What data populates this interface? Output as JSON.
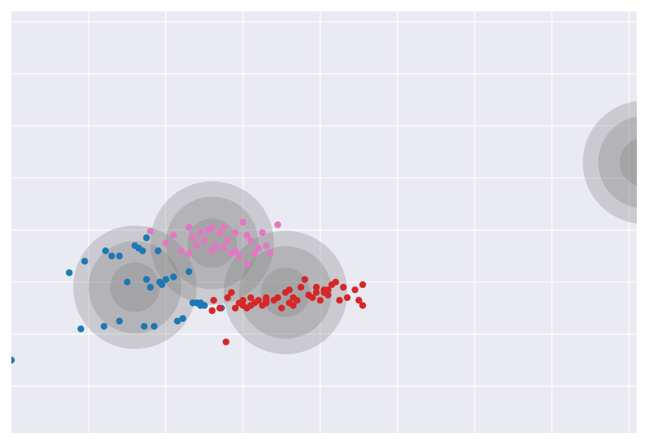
{
  "chart_data": {
    "type": "scatter",
    "title": "",
    "xlabel": "",
    "ylabel": "",
    "xlim": [
      0,
      8.1
    ],
    "ylim": [
      0,
      8.1
    ],
    "grid": true,
    "background": "#eaeaf2",
    "grid_color": "#ffffff",
    "x_gridlines": [
      1,
      2,
      3,
      4,
      5,
      6,
      7,
      8
    ],
    "y_gridlines": [
      0.9,
      1.9,
      2.9,
      3.9,
      4.9,
      5.9,
      6.9,
      7.9
    ],
    "clusters": [
      {
        "color": "#1f77b4",
        "center": [
          1.6,
          2.8
        ],
        "radii": [
          0.8,
          0.6,
          0.32
        ],
        "points": [
          [
            0.0,
            1.4
          ],
          [
            0.75,
            3.08
          ],
          [
            0.9,
            2.0
          ],
          [
            0.95,
            3.3
          ],
          [
            1.2,
            2.05
          ],
          [
            1.22,
            3.5
          ],
          [
            1.3,
            3.4
          ],
          [
            1.4,
            2.15
          ],
          [
            1.4,
            3.4
          ],
          [
            1.5,
            2.9
          ],
          [
            1.6,
            3.6
          ],
          [
            1.65,
            3.55
          ],
          [
            1.7,
            3.5
          ],
          [
            1.75,
            3.75
          ],
          [
            1.72,
            2.05
          ],
          [
            1.75,
            2.95
          ],
          [
            1.8,
            2.8
          ],
          [
            1.9,
            3.5
          ],
          [
            1.92,
            2.9
          ],
          [
            2.0,
            2.95
          ],
          [
            2.1,
            3.0
          ],
          [
            2.15,
            2.15
          ],
          [
            2.22,
            2.2
          ],
          [
            2.3,
            3.1
          ],
          [
            2.35,
            2.5
          ],
          [
            2.4,
            2.5
          ],
          [
            2.45,
            2.45
          ],
          [
            2.45,
            2.5
          ],
          [
            2.5,
            2.45
          ],
          [
            2.72,
            2.4
          ],
          [
            1.85,
            2.05
          ],
          [
            1.95,
            2.85
          ]
        ]
      },
      {
        "color": "#e377c2",
        "center": [
          2.6,
          3.65
        ],
        "radii": [
          0.8,
          0.6,
          0.32
        ],
        "points": [
          [
            1.8,
            3.88
          ],
          [
            2.0,
            3.65
          ],
          [
            2.1,
            3.8
          ],
          [
            2.2,
            3.5
          ],
          [
            2.3,
            3.45
          ],
          [
            2.3,
            3.95
          ],
          [
            2.35,
            3.75
          ],
          [
            2.45,
            3.85
          ],
          [
            2.5,
            3.7
          ],
          [
            2.55,
            3.9
          ],
          [
            2.6,
            3.95
          ],
          [
            2.6,
            3.5
          ],
          [
            2.65,
            3.6
          ],
          [
            2.7,
            3.85
          ],
          [
            2.75,
            3.95
          ],
          [
            2.8,
            3.7
          ],
          [
            2.85,
            3.45
          ],
          [
            2.9,
            3.5
          ],
          [
            2.9,
            3.85
          ],
          [
            2.95,
            3.4
          ],
          [
            3.0,
            4.05
          ],
          [
            3.05,
            3.8
          ],
          [
            3.1,
            3.7
          ],
          [
            3.15,
            3.45
          ],
          [
            3.2,
            3.55
          ],
          [
            3.25,
            3.85
          ],
          [
            3.3,
            3.6
          ],
          [
            3.35,
            3.45
          ],
          [
            3.05,
            3.25
          ],
          [
            3.45,
            4.0
          ],
          [
            2.4,
            3.6
          ],
          [
            2.75,
            3.55
          ]
        ]
      },
      {
        "color": "#d62728",
        "center": [
          3.55,
          2.7
        ],
        "radii": [
          0.8,
          0.6,
          0.32
        ],
        "points": [
          [
            2.6,
            2.35
          ],
          [
            2.62,
            2.55
          ],
          [
            2.7,
            2.4
          ],
          [
            2.8,
            2.6
          ],
          [
            2.85,
            2.7
          ],
          [
            2.9,
            2.4
          ],
          [
            2.95,
            2.5
          ],
          [
            3.0,
            2.45
          ],
          [
            3.0,
            2.55
          ],
          [
            3.05,
            2.4
          ],
          [
            3.1,
            2.45
          ],
          [
            3.1,
            2.6
          ],
          [
            3.15,
            2.5
          ],
          [
            3.2,
            2.55
          ],
          [
            3.25,
            2.45
          ],
          [
            3.3,
            2.5
          ],
          [
            3.3,
            2.6
          ],
          [
            3.4,
            2.55
          ],
          [
            3.45,
            2.6
          ],
          [
            3.5,
            2.4
          ],
          [
            3.55,
            2.7
          ],
          [
            3.6,
            2.5
          ],
          [
            3.6,
            2.75
          ],
          [
            3.65,
            2.6
          ],
          [
            3.7,
            2.55
          ],
          [
            3.75,
            2.8
          ],
          [
            3.8,
            2.95
          ],
          [
            3.85,
            2.65
          ],
          [
            3.9,
            2.6
          ],
          [
            3.95,
            2.7
          ],
          [
            4.0,
            2.55
          ],
          [
            4.05,
            2.75
          ],
          [
            4.1,
            2.65
          ],
          [
            4.15,
            2.85
          ],
          [
            4.2,
            2.9
          ],
          [
            4.25,
            2.55
          ],
          [
            4.3,
            2.8
          ],
          [
            4.35,
            2.6
          ],
          [
            4.45,
            2.75
          ],
          [
            4.5,
            2.55
          ],
          [
            4.55,
            2.85
          ],
          [
            4.55,
            2.45
          ],
          [
            3.3,
            2.55
          ],
          [
            2.78,
            1.75
          ],
          [
            4.1,
            2.75
          ],
          [
            3.95,
            2.8
          ],
          [
            3.65,
            2.45
          ],
          [
            4.05,
            2.7
          ]
        ]
      },
      {
        "color": "#17becf",
        "center": [
          8.2,
          5.2
        ],
        "radii": [
          0.8,
          0.6,
          0.32
        ],
        "points": [
          [
            8.2,
            5.2
          ]
        ]
      }
    ]
  }
}
